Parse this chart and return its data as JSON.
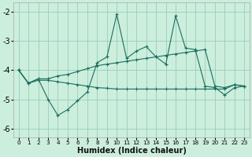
{
  "xlabel": "Humidex (Indice chaleur)",
  "background_color": "#cceedd",
  "grid_color": "#99ccbb",
  "line_color": "#1a6e5e",
  "x": [
    0,
    1,
    2,
    3,
    4,
    5,
    6,
    7,
    8,
    9,
    10,
    11,
    12,
    13,
    14,
    15,
    16,
    17,
    18,
    19,
    20,
    21,
    22,
    23
  ],
  "y_line1": [
    -4.0,
    -4.45,
    -4.3,
    -5.0,
    -5.55,
    -5.35,
    -5.05,
    -4.75,
    -3.75,
    -3.55,
    -2.1,
    -3.6,
    -3.35,
    -3.2,
    -3.55,
    -3.8,
    -2.15,
    -3.25,
    -3.3,
    -4.55,
    -4.6,
    -4.85,
    -4.6,
    -4.55
  ],
  "y_line2": [
    -4.0,
    -4.45,
    -4.3,
    -4.3,
    -4.2,
    -4.15,
    -4.05,
    -3.95,
    -3.85,
    -3.8,
    -3.75,
    -3.7,
    -3.65,
    -3.6,
    -3.55,
    -3.5,
    -3.45,
    -3.4,
    -3.35,
    -3.3,
    -4.55,
    -4.6,
    -4.5,
    -4.55
  ],
  "y_line3": [
    -4.0,
    -4.45,
    -4.35,
    -4.35,
    -4.4,
    -4.45,
    -4.5,
    -4.55,
    -4.6,
    -4.62,
    -4.65,
    -4.65,
    -4.65,
    -4.65,
    -4.65,
    -4.65,
    -4.65,
    -4.65,
    -4.65,
    -4.65,
    -4.65,
    -4.65,
    -4.5,
    -4.55
  ],
  "ylim": [
    -6.3,
    -1.7
  ],
  "yticks": [
    -6,
    -5,
    -4,
    -3,
    -2
  ],
  "xlim": [
    -0.5,
    23.5
  ],
  "xticks": [
    0,
    1,
    2,
    3,
    4,
    5,
    6,
    7,
    8,
    9,
    10,
    11,
    12,
    13,
    14,
    15,
    16,
    17,
    18,
    19,
    20,
    21,
    22,
    23
  ],
  "xlabel_fontsize": 7.0,
  "ytick_fontsize": 7.0,
  "xtick_fontsize": 5.2,
  "linewidth": 0.8,
  "markersize": 3.0
}
